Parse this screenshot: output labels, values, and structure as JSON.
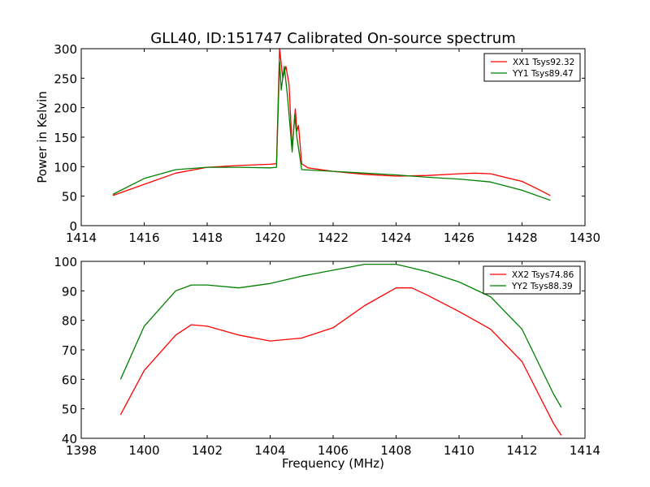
{
  "chart_data": [
    {
      "type": "line",
      "title": "GLL40, ID:151747 Calibrated On-source spectrum",
      "xlabel": "",
      "ylabel": "Power in Kelvin",
      "xlim": [
        1414,
        1430
      ],
      "ylim": [
        0,
        300
      ],
      "xticks": [
        1414,
        1416,
        1418,
        1420,
        1422,
        1424,
        1426,
        1428,
        1430
      ],
      "yticks": [
        0,
        50,
        100,
        150,
        200,
        250,
        300
      ],
      "legend_position": "top-right",
      "grid": false,
      "series": [
        {
          "name": "XX1 Tsys92.32",
          "color": "#ff0000",
          "x": [
            1415,
            1416,
            1417,
            1418,
            1419,
            1420,
            1420.2,
            1420.3,
            1420.4,
            1420.5,
            1420.6,
            1420.7,
            1420.8,
            1420.85,
            1420.9,
            1421.0,
            1421.2,
            1422,
            1423,
            1424,
            1425,
            1426,
            1426.5,
            1427,
            1428,
            1428.5,
            1428.9
          ],
          "y": [
            51,
            70,
            89,
            99,
            102,
            104,
            105,
            300,
            250,
            270,
            240,
            130,
            198,
            160,
            170,
            105,
            98,
            92,
            87,
            84,
            85,
            88,
            89,
            88,
            75,
            62,
            51
          ]
        },
        {
          "name": "YY1 Tsys89.47",
          "color": "#008000",
          "x": [
            1415,
            1416,
            1417,
            1418,
            1419,
            1420,
            1420.2,
            1420.3,
            1420.35,
            1420.45,
            1420.55,
            1420.7,
            1420.78,
            1420.85,
            1421,
            1422,
            1423,
            1424,
            1425,
            1426,
            1427,
            1428,
            1428.9
          ],
          "y": [
            53,
            80,
            95,
            99,
            99,
            98,
            99,
            278,
            230,
            270,
            220,
            125,
            188,
            150,
            95,
            92,
            89,
            86,
            82,
            79,
            74,
            60,
            43
          ]
        }
      ]
    },
    {
      "type": "line",
      "title": "",
      "xlabel": "Frequency (MHz)",
      "ylabel": "",
      "xlim": [
        1398,
        1414
      ],
      "ylim": [
        40,
        100
      ],
      "xticks": [
        1398,
        1400,
        1402,
        1404,
        1406,
        1408,
        1410,
        1412,
        1414
      ],
      "yticks": [
        40,
        50,
        60,
        70,
        80,
        90,
        100
      ],
      "legend_position": "top-right",
      "grid": false,
      "series": [
        {
          "name": "XX2 Tsys74.86",
          "color": "#ff0000",
          "x": [
            1399.25,
            1400,
            1401,
            1401.5,
            1402,
            1403,
            1404,
            1405,
            1406,
            1407,
            1408,
            1408.5,
            1409,
            1410,
            1411,
            1412,
            1413,
            1413.25
          ],
          "y": [
            48,
            63,
            75,
            78.5,
            78,
            75,
            73,
            74,
            77.5,
            85,
            91,
            91,
            88.5,
            83,
            77,
            66,
            45,
            41
          ]
        },
        {
          "name": "YY2 Tsys88.39",
          "color": "#008000",
          "x": [
            1399.25,
            1400,
            1401,
            1401.5,
            1402,
            1403,
            1404,
            1405,
            1406,
            1407,
            1408,
            1409,
            1410,
            1411,
            1412,
            1413,
            1413.25
          ],
          "y": [
            60,
            78,
            90,
            92,
            92,
            91,
            92.5,
            95,
            97,
            99,
            99,
            96.5,
            93,
            88,
            77,
            55,
            50.5
          ]
        }
      ]
    }
  ]
}
